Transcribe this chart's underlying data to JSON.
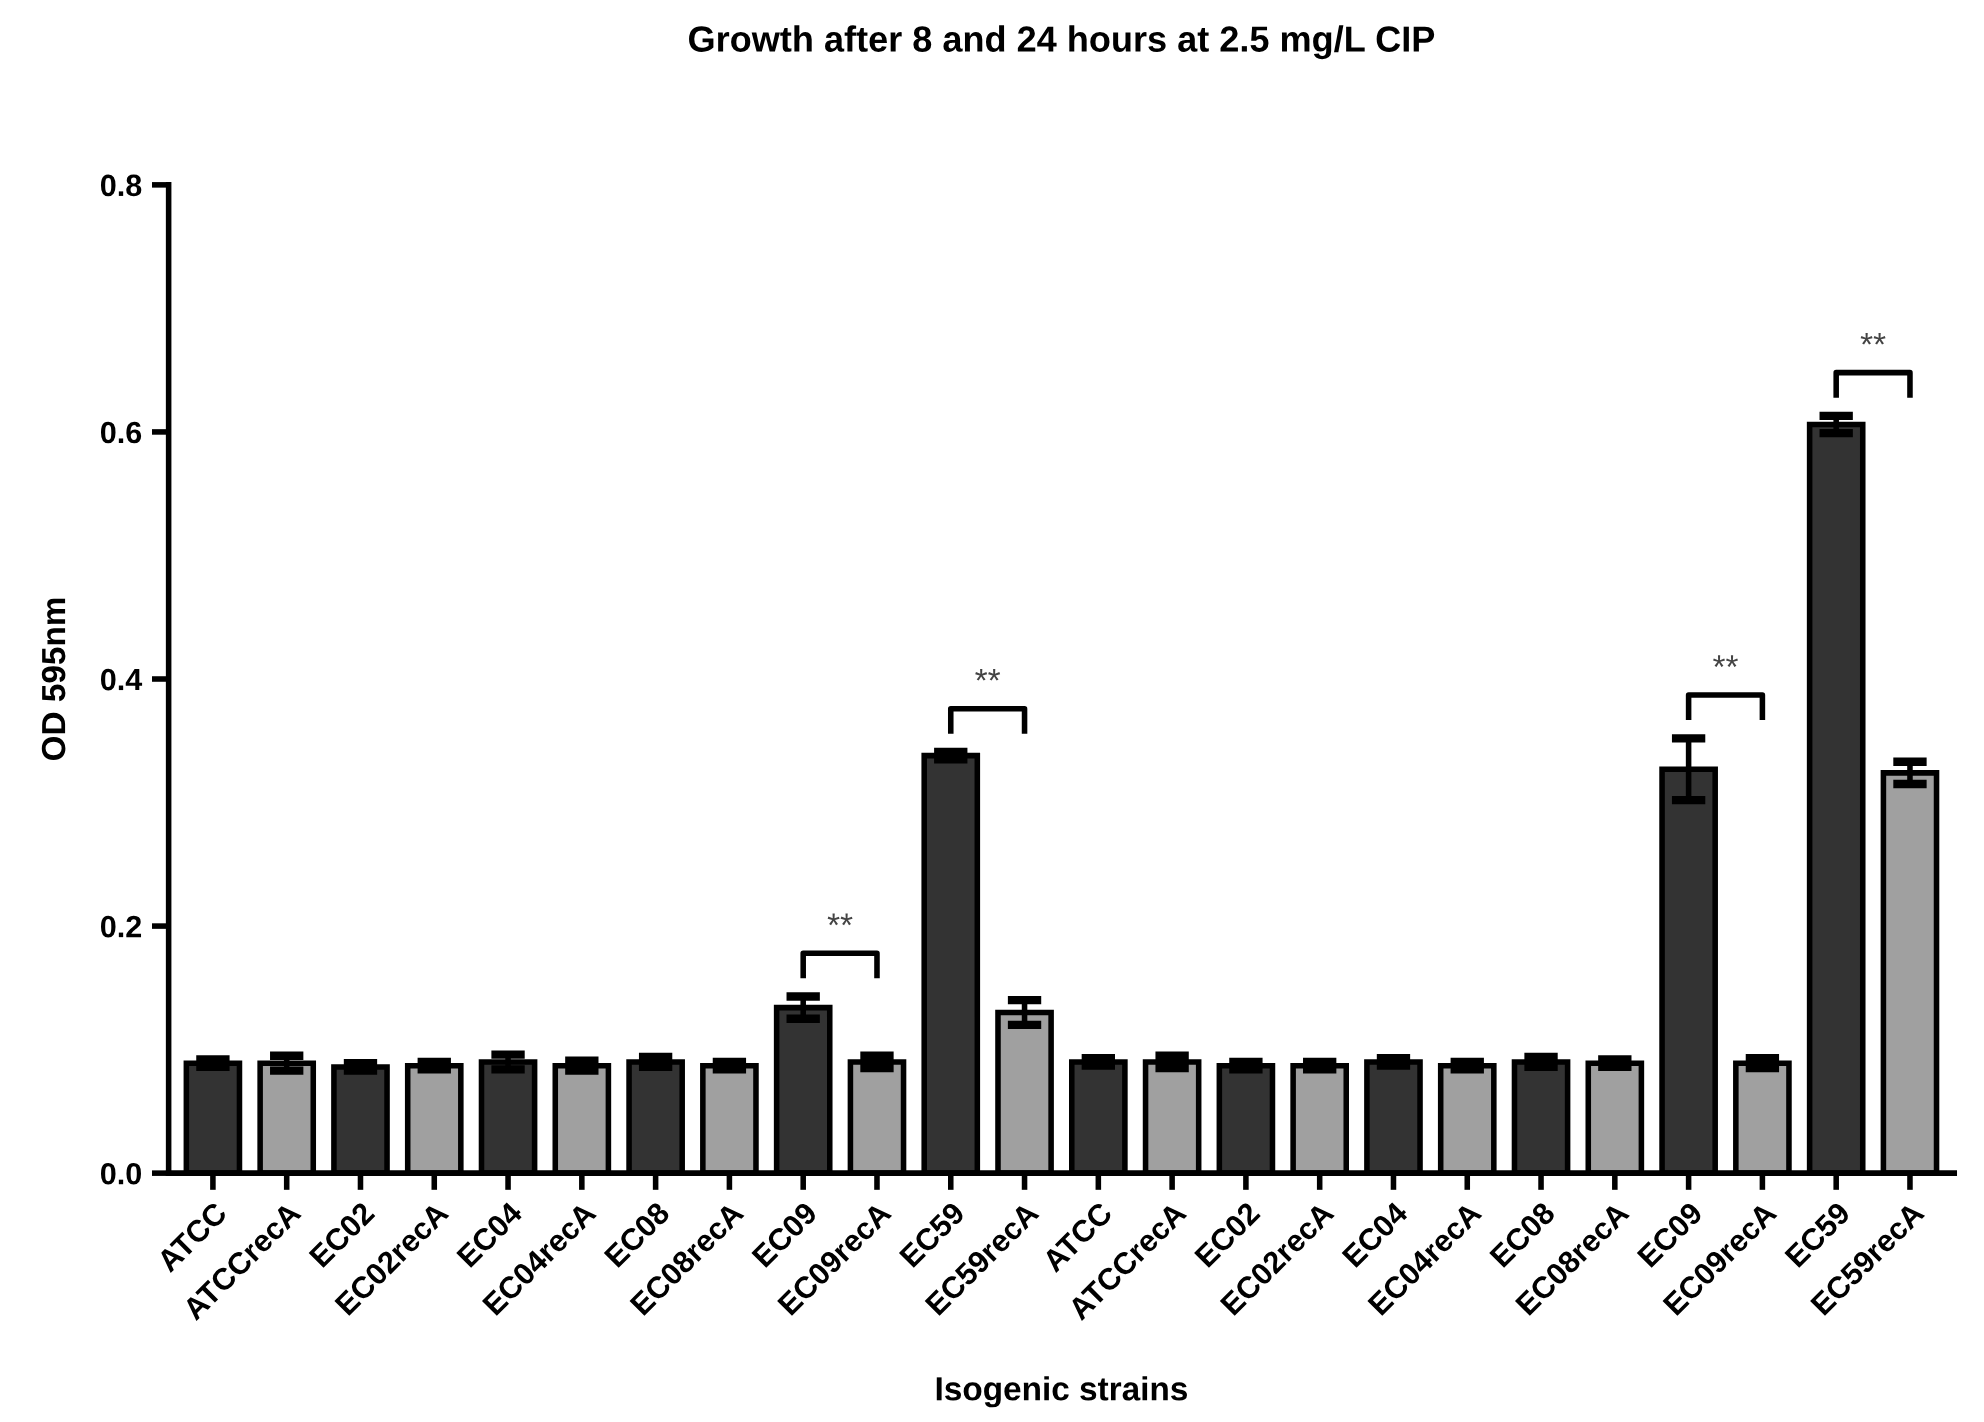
{
  "chart_data": {
    "type": "bar",
    "title": "Growth after 8 and 24 hours at 2.5 mg/L CIP",
    "xlabel": "Isogenic strains",
    "ylabel": "OD 595nm",
    "categories": [
      "ATCC",
      "ATCCrecA",
      "EC02",
      "EC02recA",
      "EC04",
      "EC04recA",
      "EC08",
      "EC08recA",
      "EC09",
      "EC09recA",
      "EC59",
      "EC59recA",
      "ATCC",
      "ATCCrecA",
      "EC02",
      "EC02recA",
      "EC04",
      "EC04recA",
      "EC08",
      "EC08recA",
      "EC09",
      "EC09recA",
      "EC59",
      "EC59recA"
    ],
    "values": [
      0.089,
      0.089,
      0.086,
      0.087,
      0.09,
      0.087,
      0.09,
      0.087,
      0.134,
      0.09,
      0.338,
      0.13,
      0.09,
      0.09,
      0.087,
      0.087,
      0.09,
      0.087,
      0.09,
      0.089,
      0.327,
      0.089,
      0.606,
      0.324
    ],
    "errors": [
      0.003,
      0.006,
      0.003,
      0.003,
      0.006,
      0.004,
      0.004,
      0.003,
      0.009,
      0.005,
      0.003,
      0.01,
      0.003,
      0.005,
      0.003,
      0.003,
      0.003,
      0.003,
      0.004,
      0.003,
      0.025,
      0.004,
      0.007,
      0.009
    ],
    "colors": [
      "#333333",
      "#a0a0a0",
      "#333333",
      "#a0a0a0",
      "#333333",
      "#a0a0a0",
      "#333333",
      "#a0a0a0",
      "#333333",
      "#a0a0a0",
      "#333333",
      "#a0a0a0",
      "#333333",
      "#a0a0a0",
      "#333333",
      "#a0a0a0",
      "#333333",
      "#a0a0a0",
      "#333333",
      "#a0a0a0",
      "#333333",
      "#a0a0a0",
      "#333333",
      "#a0a0a0"
    ],
    "ylim": [
      0,
      0.8
    ],
    "yticks": [
      {
        "value": 0,
        "label": "0.0"
      },
      {
        "value": 0.2,
        "label": "0.2"
      },
      {
        "value": 0.4,
        "label": "0.4"
      },
      {
        "value": 0.6,
        "label": "0.6"
      },
      {
        "value": 0.8,
        "label": "0.8"
      }
    ],
    "annotations": [
      "**",
      "**",
      "**",
      "**"
    ],
    "grid": false,
    "legend": false
  }
}
